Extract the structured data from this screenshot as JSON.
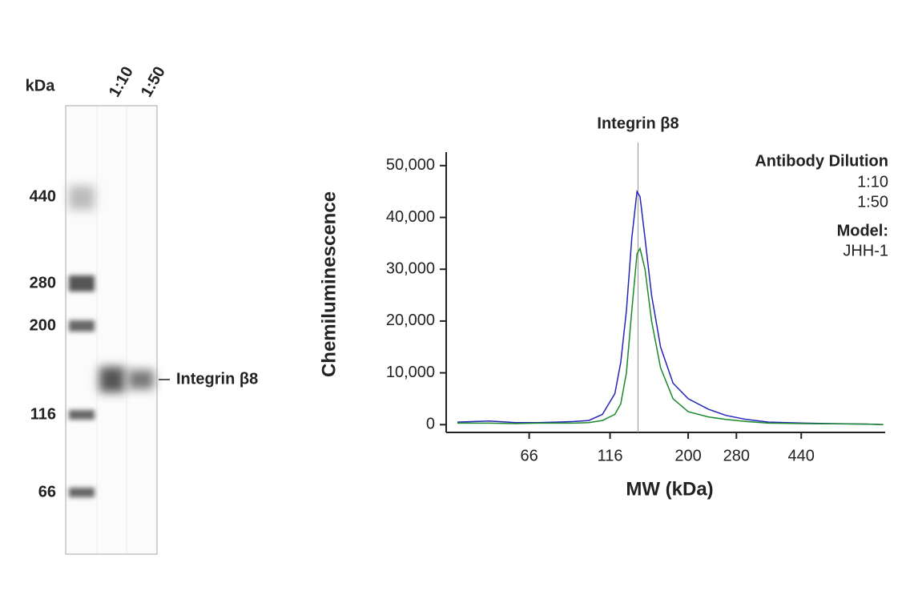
{
  "blot": {
    "unit_label": "kDa",
    "lanes": [
      "1:10",
      "1:50"
    ],
    "markers": [
      440,
      280,
      200,
      116,
      66
    ],
    "band_label": "Integrin β8"
  },
  "chart_data": {
    "type": "line",
    "annotation": {
      "text": "Integrin β8",
      "x": 141
    },
    "xlabel": "MW (kDa)",
    "ylabel": "Chemiluminescence",
    "xscale": "log",
    "xlim": [
      37,
      790
    ],
    "xticks": [
      66,
      116,
      200,
      280,
      440
    ],
    "ylim": [
      -1500,
      52600
    ],
    "yticks": [
      0,
      {
        "value": 10000,
        "label": "10,000"
      },
      {
        "value": 20000,
        "label": "20,000"
      },
      {
        "value": 30000,
        "label": "30,000"
      },
      {
        "value": 40000,
        "label": "40,000"
      },
      {
        "value": 50000,
        "label": "50,000"
      }
    ],
    "legend_title": "Antibody Dilution",
    "legend": "top-right",
    "note_title": "Model:",
    "note": "JHH-1",
    "x": [
      40,
      50,
      60,
      70,
      80,
      90,
      100,
      110,
      120,
      125,
      130,
      135,
      140,
      143,
      148,
      155,
      165,
      180,
      200,
      230,
      260,
      300,
      350,
      450,
      550,
      700,
      780
    ],
    "series": [
      {
        "name": "1:10",
        "color": "#2424b8",
        "values": [
          500,
          700,
          400,
          400,
          500,
          600,
          800,
          2000,
          6000,
          12000,
          22000,
          36000,
          45000,
          44000,
          36000,
          25000,
          15000,
          8000,
          5000,
          3000,
          1800,
          1000,
          500,
          300,
          200,
          100,
          0
        ]
      },
      {
        "name": "1:50",
        "color": "#1a8a2a",
        "values": [
          300,
          300,
          200,
          300,
          300,
          300,
          400,
          800,
          2000,
          4000,
          10000,
          22000,
          33000,
          34000,
          30000,
          20000,
          11000,
          5000,
          2500,
          1500,
          1000,
          600,
          300,
          200,
          150,
          100,
          0
        ]
      }
    ]
  }
}
